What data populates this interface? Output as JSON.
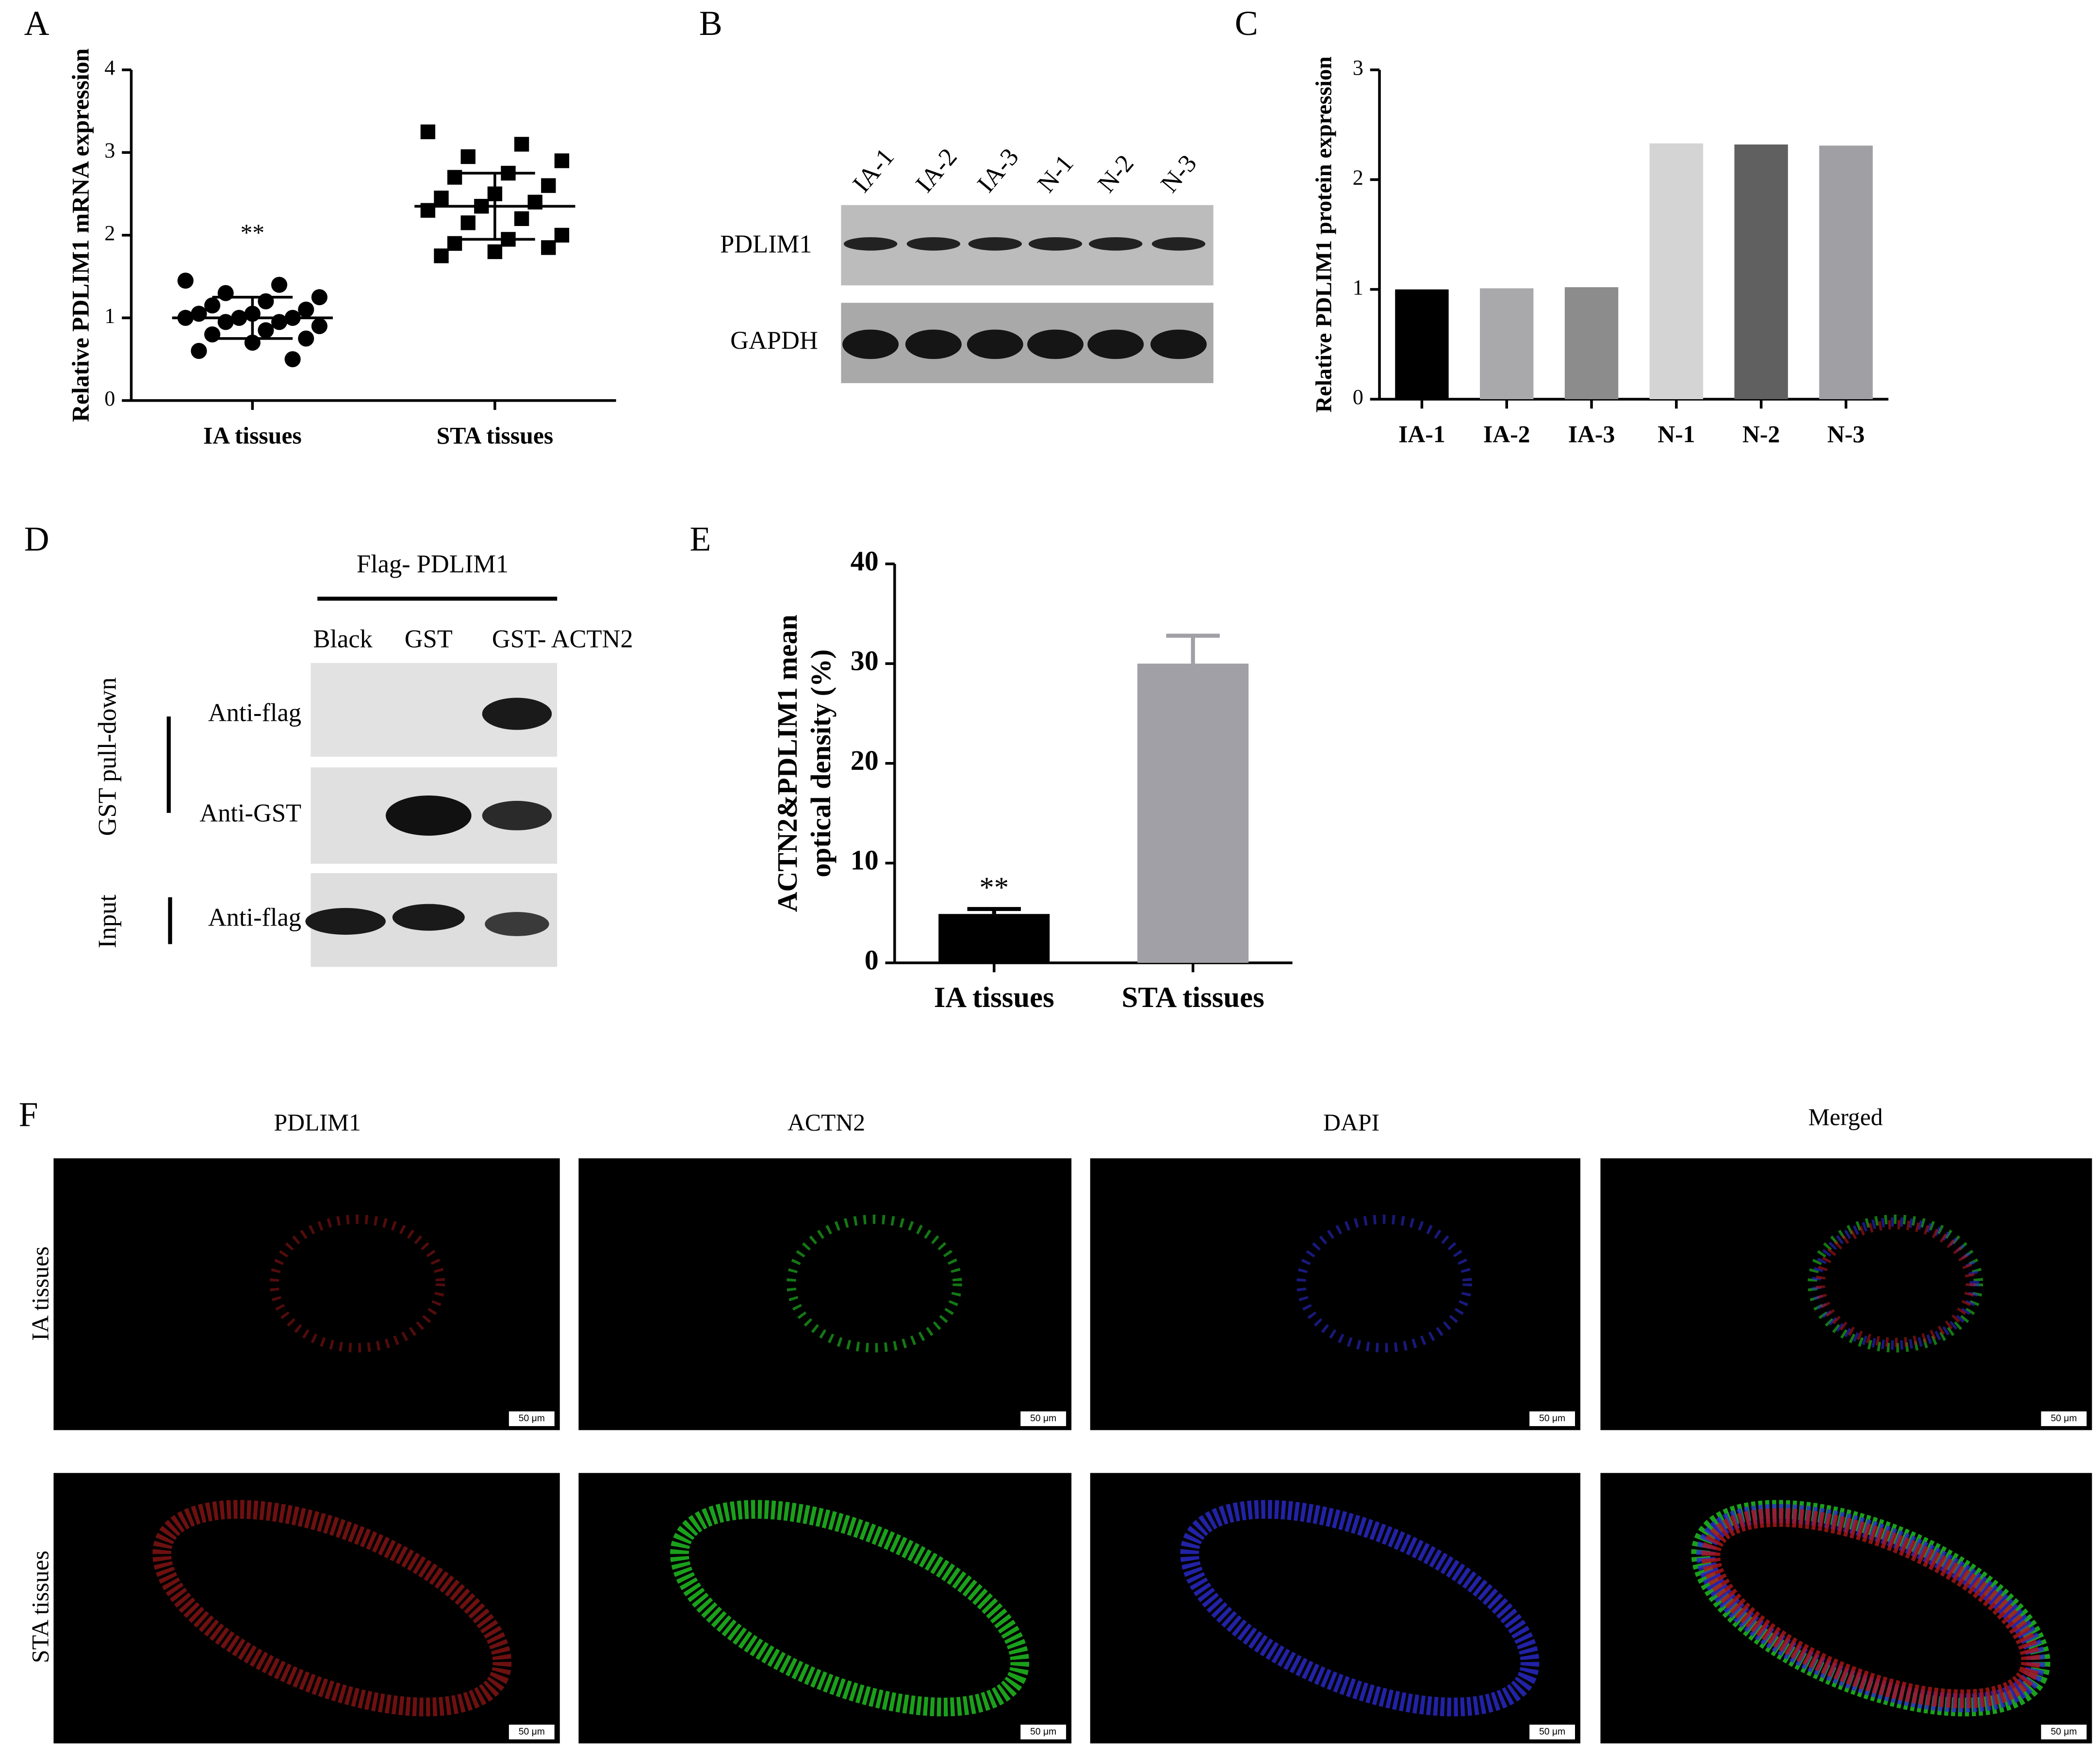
{
  "panels": [
    "A",
    "B",
    "C",
    "D",
    "E",
    "F"
  ],
  "chart_data": [
    {
      "type": "scatter",
      "ylabel": "Relative PDLIM1 mRNA expression",
      "categories": [
        "IA tissues",
        "STA tissues"
      ],
      "series": [
        {
          "marker": "circle",
          "color": "#000000",
          "values": [
            1.45,
            1.4,
            1.3,
            1.25,
            1.2,
            1.15,
            1.1,
            1.05,
            1.05,
            1.0,
            1.0,
            1.0,
            0.95,
            0.95,
            0.9,
            0.85,
            0.8,
            0.75,
            0.7,
            0.6,
            0.5
          ]
        },
        {
          "marker": "square",
          "color": "#000000",
          "values": [
            3.25,
            3.1,
            2.95,
            2.9,
            2.75,
            2.7,
            2.6,
            2.5,
            2.45,
            2.4,
            2.35,
            2.3,
            2.2,
            2.15,
            2.0,
            1.95,
            1.9,
            1.85,
            1.8,
            1.75
          ]
        }
      ],
      "means": [
        1.0,
        2.35
      ],
      "sd": [
        0.25,
        0.4
      ],
      "annotation": "**",
      "ylim": [
        0,
        4
      ],
      "yticks": [
        0,
        1,
        2,
        3,
        4
      ]
    },
    {
      "type": "bar",
      "ylabel": "Relative PDLIM1 protein expression",
      "categories": [
        "IA-1",
        "IA-2",
        "IA-3",
        "N-1",
        "N-2",
        "N-3"
      ],
      "values": [
        1.0,
        1.01,
        1.02,
        2.33,
        2.32,
        2.31
      ],
      "colors": [
        "#000000",
        "#a9a9ab",
        "#8c8c8c",
        "#d4d4d4",
        "#606060",
        "#a0a0a4"
      ],
      "ylim": [
        0,
        3
      ],
      "yticks": [
        0,
        1,
        2,
        3
      ]
    },
    {
      "type": "bar",
      "ylabel": [
        "ACTN2&PDLIM1 mean",
        "optical density (%)"
      ],
      "categories": [
        "IA tissues",
        "STA tissues"
      ],
      "values": [
        4.9,
        30
      ],
      "errors": [
        0.5,
        2.8
      ],
      "annotation": "**",
      "colors": [
        "#000000",
        "#a0a0a6"
      ],
      "ylim": [
        0,
        40
      ],
      "yticks": [
        0,
        10,
        20,
        30,
        40
      ]
    }
  ],
  "blot_b": {
    "lanes": [
      "IA-1",
      "IA-2",
      "IA-3",
      "N-1",
      "N-2",
      "N-3"
    ],
    "bands": [
      "PDLIM1",
      "GAPDH"
    ]
  },
  "blot_d": {
    "construct": "Flag- PDLIM1",
    "lanes": [
      "Black",
      "GST",
      "GST- ACTN2"
    ],
    "rows": [
      "Anti-flag",
      "Anti-GST",
      "Anti-flag"
    ],
    "groups": [
      "GST pull-down",
      "Input"
    ]
  },
  "micrographs": {
    "columns": [
      "PDLIM1",
      "ACTN2",
      "DAPI",
      "Merged"
    ],
    "rows": [
      "IA tissues",
      "STA tissues"
    ],
    "scale_bar": "50 μm"
  }
}
